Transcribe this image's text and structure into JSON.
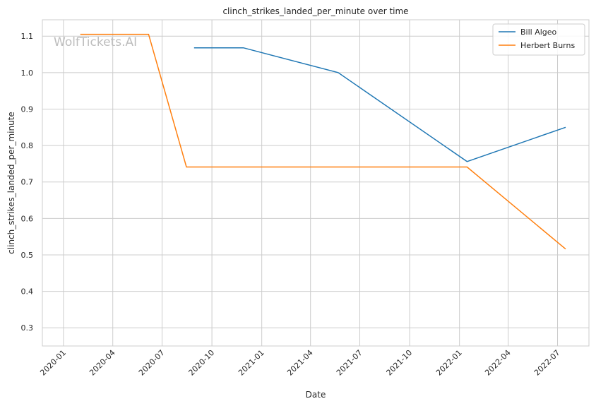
{
  "watermark": "WolfTickets.AI",
  "chart_data": {
    "type": "line",
    "title": "clinch_strikes_landed_per_minute over time",
    "xlabel": "Date",
    "ylabel": "clinch_strikes_landed_per_minute",
    "x_ticks": [
      "2020-01",
      "2020-04",
      "2020-07",
      "2020-10",
      "2021-01",
      "2021-04",
      "2021-07",
      "2021-10",
      "2022-01",
      "2022-04",
      "2022-07"
    ],
    "y_ticks": [
      "0.3",
      "0.4",
      "0.5",
      "0.6",
      "0.7",
      "0.8",
      "0.9",
      "1.0",
      "1.1"
    ],
    "xlim": [
      "2019-11-23",
      "2022-08-28"
    ],
    "ylim": [
      0.25,
      1.145
    ],
    "grid": true,
    "legend_position": "top-right",
    "series": [
      {
        "name": "Bill Algeo",
        "color": "#1f77b4",
        "points": [
          {
            "x": "2020-08-29",
            "y": 1.068
          },
          {
            "x": "2020-11-28",
            "y": 1.068
          },
          {
            "x": "2021-05-22",
            "y": 1.0
          },
          {
            "x": "2022-01-15",
            "y": 0.756
          },
          {
            "x": "2022-07-16",
            "y": 0.85
          }
        ]
      },
      {
        "name": "Herbert Burns",
        "color": "#ff7f0e",
        "points": [
          {
            "x": "2020-02-01",
            "y": 1.105
          },
          {
            "x": "2020-06-06",
            "y": 1.105
          },
          {
            "x": "2020-08-15",
            "y": 0.741
          },
          {
            "x": "2022-01-15",
            "y": 0.741
          },
          {
            "x": "2022-07-16",
            "y": 0.516
          }
        ]
      }
    ]
  }
}
